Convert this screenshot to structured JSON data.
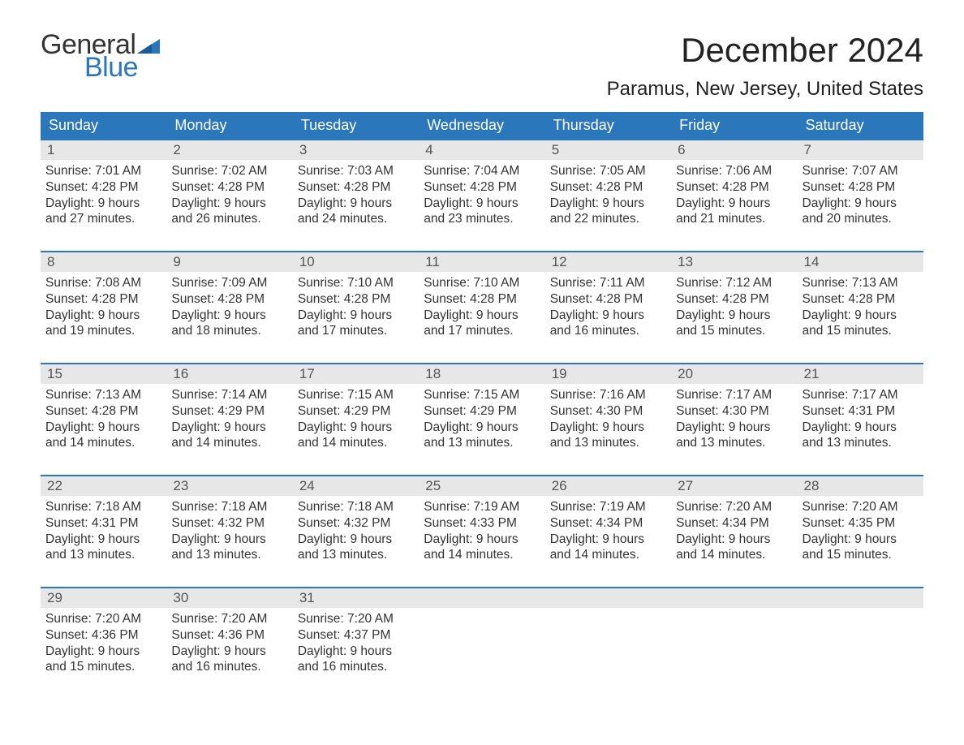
{
  "logo": {
    "word1": "General",
    "word2": "Blue",
    "flag_color": "#2b77bb"
  },
  "title": "December 2024",
  "location": "Paramus, New Jersey, United States",
  "colors": {
    "header_bg": "#2b77bb",
    "daynum_bg": "#e7e7e7",
    "text": "#333333",
    "accent": "#2b77bb"
  },
  "typography": {
    "title_fontsize": 42,
    "location_fontsize": 24,
    "body_fontsize": 15.5
  },
  "days_of_week": [
    "Sunday",
    "Monday",
    "Tuesday",
    "Wednesday",
    "Thursday",
    "Friday",
    "Saturday"
  ],
  "weeks": [
    [
      {
        "n": "1",
        "sr": "Sunrise: 7:01 AM",
        "ss": "Sunset: 4:28 PM",
        "d1": "Daylight: 9 hours",
        "d2": "and 27 minutes."
      },
      {
        "n": "2",
        "sr": "Sunrise: 7:02 AM",
        "ss": "Sunset: 4:28 PM",
        "d1": "Daylight: 9 hours",
        "d2": "and 26 minutes."
      },
      {
        "n": "3",
        "sr": "Sunrise: 7:03 AM",
        "ss": "Sunset: 4:28 PM",
        "d1": "Daylight: 9 hours",
        "d2": "and 24 minutes."
      },
      {
        "n": "4",
        "sr": "Sunrise: 7:04 AM",
        "ss": "Sunset: 4:28 PM",
        "d1": "Daylight: 9 hours",
        "d2": "and 23 minutes."
      },
      {
        "n": "5",
        "sr": "Sunrise: 7:05 AM",
        "ss": "Sunset: 4:28 PM",
        "d1": "Daylight: 9 hours",
        "d2": "and 22 minutes."
      },
      {
        "n": "6",
        "sr": "Sunrise: 7:06 AM",
        "ss": "Sunset: 4:28 PM",
        "d1": "Daylight: 9 hours",
        "d2": "and 21 minutes."
      },
      {
        "n": "7",
        "sr": "Sunrise: 7:07 AM",
        "ss": "Sunset: 4:28 PM",
        "d1": "Daylight: 9 hours",
        "d2": "and 20 minutes."
      }
    ],
    [
      {
        "n": "8",
        "sr": "Sunrise: 7:08 AM",
        "ss": "Sunset: 4:28 PM",
        "d1": "Daylight: 9 hours",
        "d2": "and 19 minutes."
      },
      {
        "n": "9",
        "sr": "Sunrise: 7:09 AM",
        "ss": "Sunset: 4:28 PM",
        "d1": "Daylight: 9 hours",
        "d2": "and 18 minutes."
      },
      {
        "n": "10",
        "sr": "Sunrise: 7:10 AM",
        "ss": "Sunset: 4:28 PM",
        "d1": "Daylight: 9 hours",
        "d2": "and 17 minutes."
      },
      {
        "n": "11",
        "sr": "Sunrise: 7:10 AM",
        "ss": "Sunset: 4:28 PM",
        "d1": "Daylight: 9 hours",
        "d2": "and 17 minutes."
      },
      {
        "n": "12",
        "sr": "Sunrise: 7:11 AM",
        "ss": "Sunset: 4:28 PM",
        "d1": "Daylight: 9 hours",
        "d2": "and 16 minutes."
      },
      {
        "n": "13",
        "sr": "Sunrise: 7:12 AM",
        "ss": "Sunset: 4:28 PM",
        "d1": "Daylight: 9 hours",
        "d2": "and 15 minutes."
      },
      {
        "n": "14",
        "sr": "Sunrise: 7:13 AM",
        "ss": "Sunset: 4:28 PM",
        "d1": "Daylight: 9 hours",
        "d2": "and 15 minutes."
      }
    ],
    [
      {
        "n": "15",
        "sr": "Sunrise: 7:13 AM",
        "ss": "Sunset: 4:28 PM",
        "d1": "Daylight: 9 hours",
        "d2": "and 14 minutes."
      },
      {
        "n": "16",
        "sr": "Sunrise: 7:14 AM",
        "ss": "Sunset: 4:29 PM",
        "d1": "Daylight: 9 hours",
        "d2": "and 14 minutes."
      },
      {
        "n": "17",
        "sr": "Sunrise: 7:15 AM",
        "ss": "Sunset: 4:29 PM",
        "d1": "Daylight: 9 hours",
        "d2": "and 14 minutes."
      },
      {
        "n": "18",
        "sr": "Sunrise: 7:15 AM",
        "ss": "Sunset: 4:29 PM",
        "d1": "Daylight: 9 hours",
        "d2": "and 13 minutes."
      },
      {
        "n": "19",
        "sr": "Sunrise: 7:16 AM",
        "ss": "Sunset: 4:30 PM",
        "d1": "Daylight: 9 hours",
        "d2": "and 13 minutes."
      },
      {
        "n": "20",
        "sr": "Sunrise: 7:17 AM",
        "ss": "Sunset: 4:30 PM",
        "d1": "Daylight: 9 hours",
        "d2": "and 13 minutes."
      },
      {
        "n": "21",
        "sr": "Sunrise: 7:17 AM",
        "ss": "Sunset: 4:31 PM",
        "d1": "Daylight: 9 hours",
        "d2": "and 13 minutes."
      }
    ],
    [
      {
        "n": "22",
        "sr": "Sunrise: 7:18 AM",
        "ss": "Sunset: 4:31 PM",
        "d1": "Daylight: 9 hours",
        "d2": "and 13 minutes."
      },
      {
        "n": "23",
        "sr": "Sunrise: 7:18 AM",
        "ss": "Sunset: 4:32 PM",
        "d1": "Daylight: 9 hours",
        "d2": "and 13 minutes."
      },
      {
        "n": "24",
        "sr": "Sunrise: 7:18 AM",
        "ss": "Sunset: 4:32 PM",
        "d1": "Daylight: 9 hours",
        "d2": "and 13 minutes."
      },
      {
        "n": "25",
        "sr": "Sunrise: 7:19 AM",
        "ss": "Sunset: 4:33 PM",
        "d1": "Daylight: 9 hours",
        "d2": "and 14 minutes."
      },
      {
        "n": "26",
        "sr": "Sunrise: 7:19 AM",
        "ss": "Sunset: 4:34 PM",
        "d1": "Daylight: 9 hours",
        "d2": "and 14 minutes."
      },
      {
        "n": "27",
        "sr": "Sunrise: 7:20 AM",
        "ss": "Sunset: 4:34 PM",
        "d1": "Daylight: 9 hours",
        "d2": "and 14 minutes."
      },
      {
        "n": "28",
        "sr": "Sunrise: 7:20 AM",
        "ss": "Sunset: 4:35 PM",
        "d1": "Daylight: 9 hours",
        "d2": "and 15 minutes."
      }
    ],
    [
      {
        "n": "29",
        "sr": "Sunrise: 7:20 AM",
        "ss": "Sunset: 4:36 PM",
        "d1": "Daylight: 9 hours",
        "d2": "and 15 minutes."
      },
      {
        "n": "30",
        "sr": "Sunrise: 7:20 AM",
        "ss": "Sunset: 4:36 PM",
        "d1": "Daylight: 9 hours",
        "d2": "and 16 minutes."
      },
      {
        "n": "31",
        "sr": "Sunrise: 7:20 AM",
        "ss": "Sunset: 4:37 PM",
        "d1": "Daylight: 9 hours",
        "d2": "and 16 minutes."
      },
      null,
      null,
      null,
      null
    ]
  ]
}
